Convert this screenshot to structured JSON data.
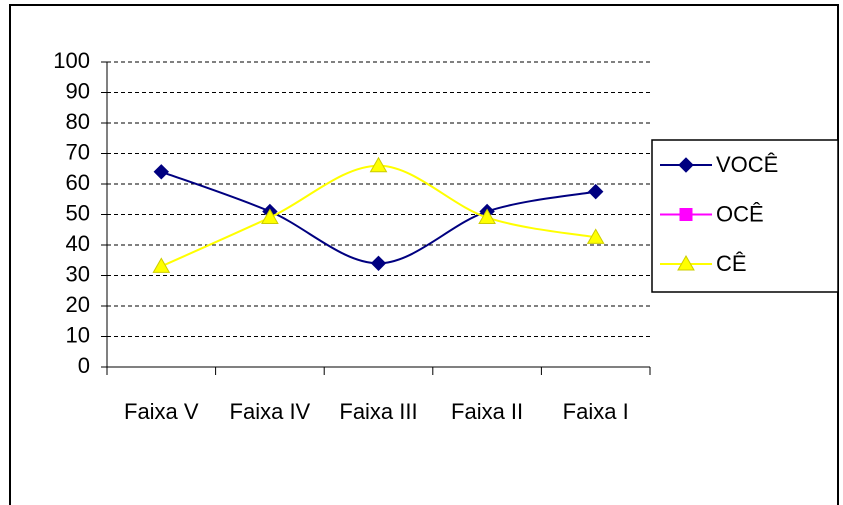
{
  "chart_data": {
    "type": "line",
    "categories": [
      "Faixa V",
      "Faixa IV",
      "Faixa III",
      "Faixa II",
      "Faixa I"
    ],
    "series": [
      {
        "name": "VOCÊ",
        "color": "#000080",
        "marker": "diamond",
        "values": [
          64,
          51,
          34,
          51,
          57.5
        ]
      },
      {
        "name": "OCÊ",
        "color": "#ff00ff",
        "marker": "square",
        "values": [
          null,
          null,
          null,
          null,
          null
        ]
      },
      {
        "name": "CÊ",
        "color": "#ffff00",
        "marker": "triangle",
        "values": [
          33,
          49,
          66,
          49,
          42.5
        ]
      }
    ],
    "ylim": [
      0,
      100
    ],
    "yticks": [
      0,
      10,
      20,
      30,
      40,
      50,
      60,
      70,
      80,
      90,
      100
    ],
    "grid": true,
    "smooth": true,
    "legend": "right"
  }
}
